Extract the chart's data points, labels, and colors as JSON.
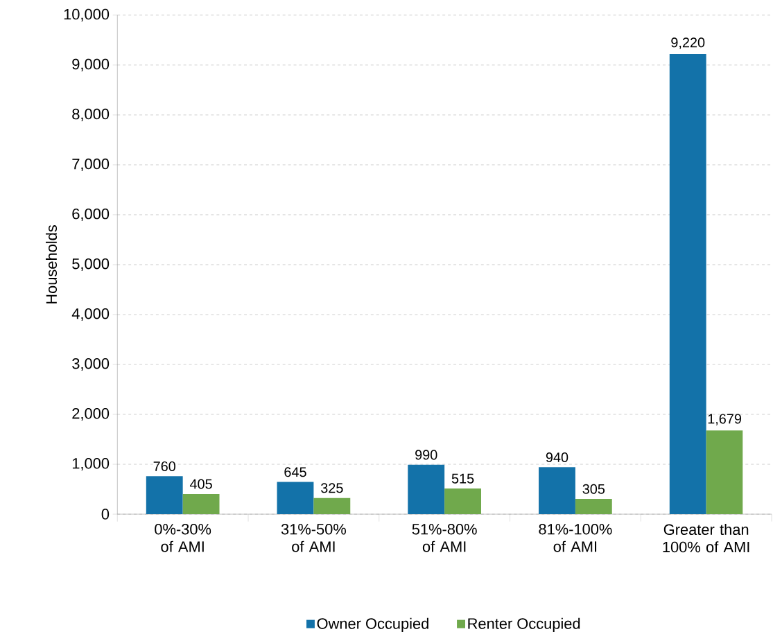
{
  "chart_data": {
    "type": "bar",
    "ylabel": "Households",
    "categories": [
      "0%-30% of AMI",
      "31%-50% of AMI",
      "51%-80% of AMI",
      "81%-100% of AMI",
      "Greater than 100% of AMI"
    ],
    "series": [
      {
        "name": "Owner Occupied",
        "color": "#1372a9",
        "values": [
          760,
          645,
          990,
          940,
          9220
        ],
        "value_labels": [
          "760",
          "645",
          "990",
          "940",
          "9,220"
        ]
      },
      {
        "name": "Renter Occupied",
        "color": "#70a94c",
        "values": [
          405,
          325,
          515,
          305,
          1679
        ],
        "value_labels": [
          "405",
          "325",
          "515",
          "305",
          "1,679"
        ]
      }
    ],
    "ylim": [
      0,
      10000
    ],
    "yticks": [
      0,
      {
        "value": 1000,
        "label": "1,000"
      },
      {
        "value": 2000,
        "label": "2,000"
      },
      {
        "value": 3000,
        "label": "3,000"
      },
      {
        "value": 4000,
        "label": "4,000"
      },
      {
        "value": 5000,
        "label": "5,000"
      },
      {
        "value": 6000,
        "label": "6,000"
      },
      {
        "value": 7000,
        "label": "7,000"
      },
      {
        "value": 8000,
        "label": "8,000"
      },
      {
        "value": 9000,
        "label": "9,000"
      },
      {
        "value": 10000,
        "label": "10,000"
      }
    ],
    "grid": "y",
    "legend": "bottom"
  }
}
